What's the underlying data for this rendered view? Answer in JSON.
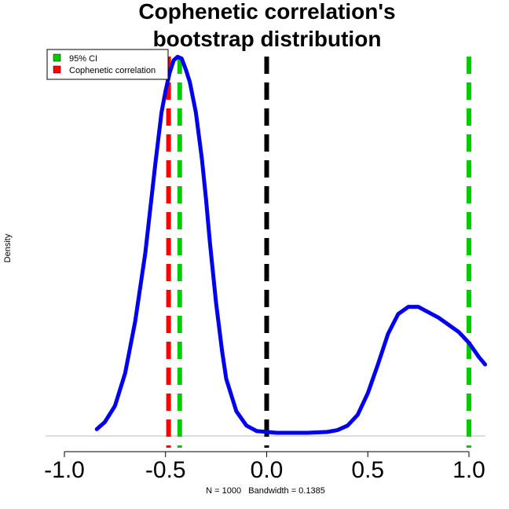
{
  "chart_data": {
    "type": "line",
    "title": [
      "Cophenetic correlation's",
      "bootstrap distribution"
    ],
    "ylabel": "Density",
    "xlabel": "N = 1000   Bandwidth = 0.1385",
    "xlim": [
      -1.04,
      1.08
    ],
    "ylim": [
      0,
      2.1
    ],
    "xticks": [
      -1.0,
      -0.5,
      0.0,
      0.5,
      1.0
    ],
    "xtick_labels": [
      "-1.0",
      "-0.5",
      "0.0",
      "0.5",
      "1.0"
    ],
    "legend": {
      "position": "top-left",
      "entries": [
        {
          "label": "95% CI",
          "color": "#00cc00"
        },
        {
          "label": "Cophenetic correlation",
          "color": "#ff0000"
        }
      ]
    },
    "density": {
      "color": "#0000ee",
      "x": [
        -0.84,
        -0.8,
        -0.75,
        -0.7,
        -0.65,
        -0.6,
        -0.57,
        -0.55,
        -0.52,
        -0.5,
        -0.48,
        -0.46,
        -0.44,
        -0.42,
        -0.4,
        -0.38,
        -0.35,
        -0.32,
        -0.3,
        -0.28,
        -0.25,
        -0.22,
        -0.2,
        -0.15,
        -0.1,
        -0.05,
        0.0,
        0.05,
        0.1,
        0.2,
        0.3,
        0.35,
        0.4,
        0.45,
        0.5,
        0.55,
        0.6,
        0.65,
        0.7,
        0.75,
        0.8,
        0.85,
        0.9,
        0.95,
        1.0,
        1.05,
        1.08
      ],
      "y": [
        0.02,
        0.06,
        0.15,
        0.33,
        0.62,
        1.0,
        1.3,
        1.5,
        1.78,
        1.9,
        2.0,
        2.07,
        2.09,
        2.08,
        2.02,
        1.95,
        1.78,
        1.52,
        1.3,
        1.05,
        0.72,
        0.45,
        0.3,
        0.12,
        0.04,
        0.01,
        0.005,
        0.0,
        0.0,
        0.0,
        0.005,
        0.015,
        0.04,
        0.1,
        0.22,
        0.38,
        0.55,
        0.66,
        0.7,
        0.7,
        0.67,
        0.64,
        0.6,
        0.56,
        0.5,
        0.42,
        0.38
      ]
    },
    "vlines": [
      {
        "name": "cophenetic-correlation-line",
        "x": -0.485,
        "color": "#ff0000"
      },
      {
        "name": "ci-lower-line",
        "x": -0.43,
        "color": "#00cc00"
      },
      {
        "name": "zero-line",
        "x": 0.0,
        "color": "#000000"
      },
      {
        "name": "ci-upper-line",
        "x": 1.0,
        "color": "#00cc00"
      }
    ]
  }
}
